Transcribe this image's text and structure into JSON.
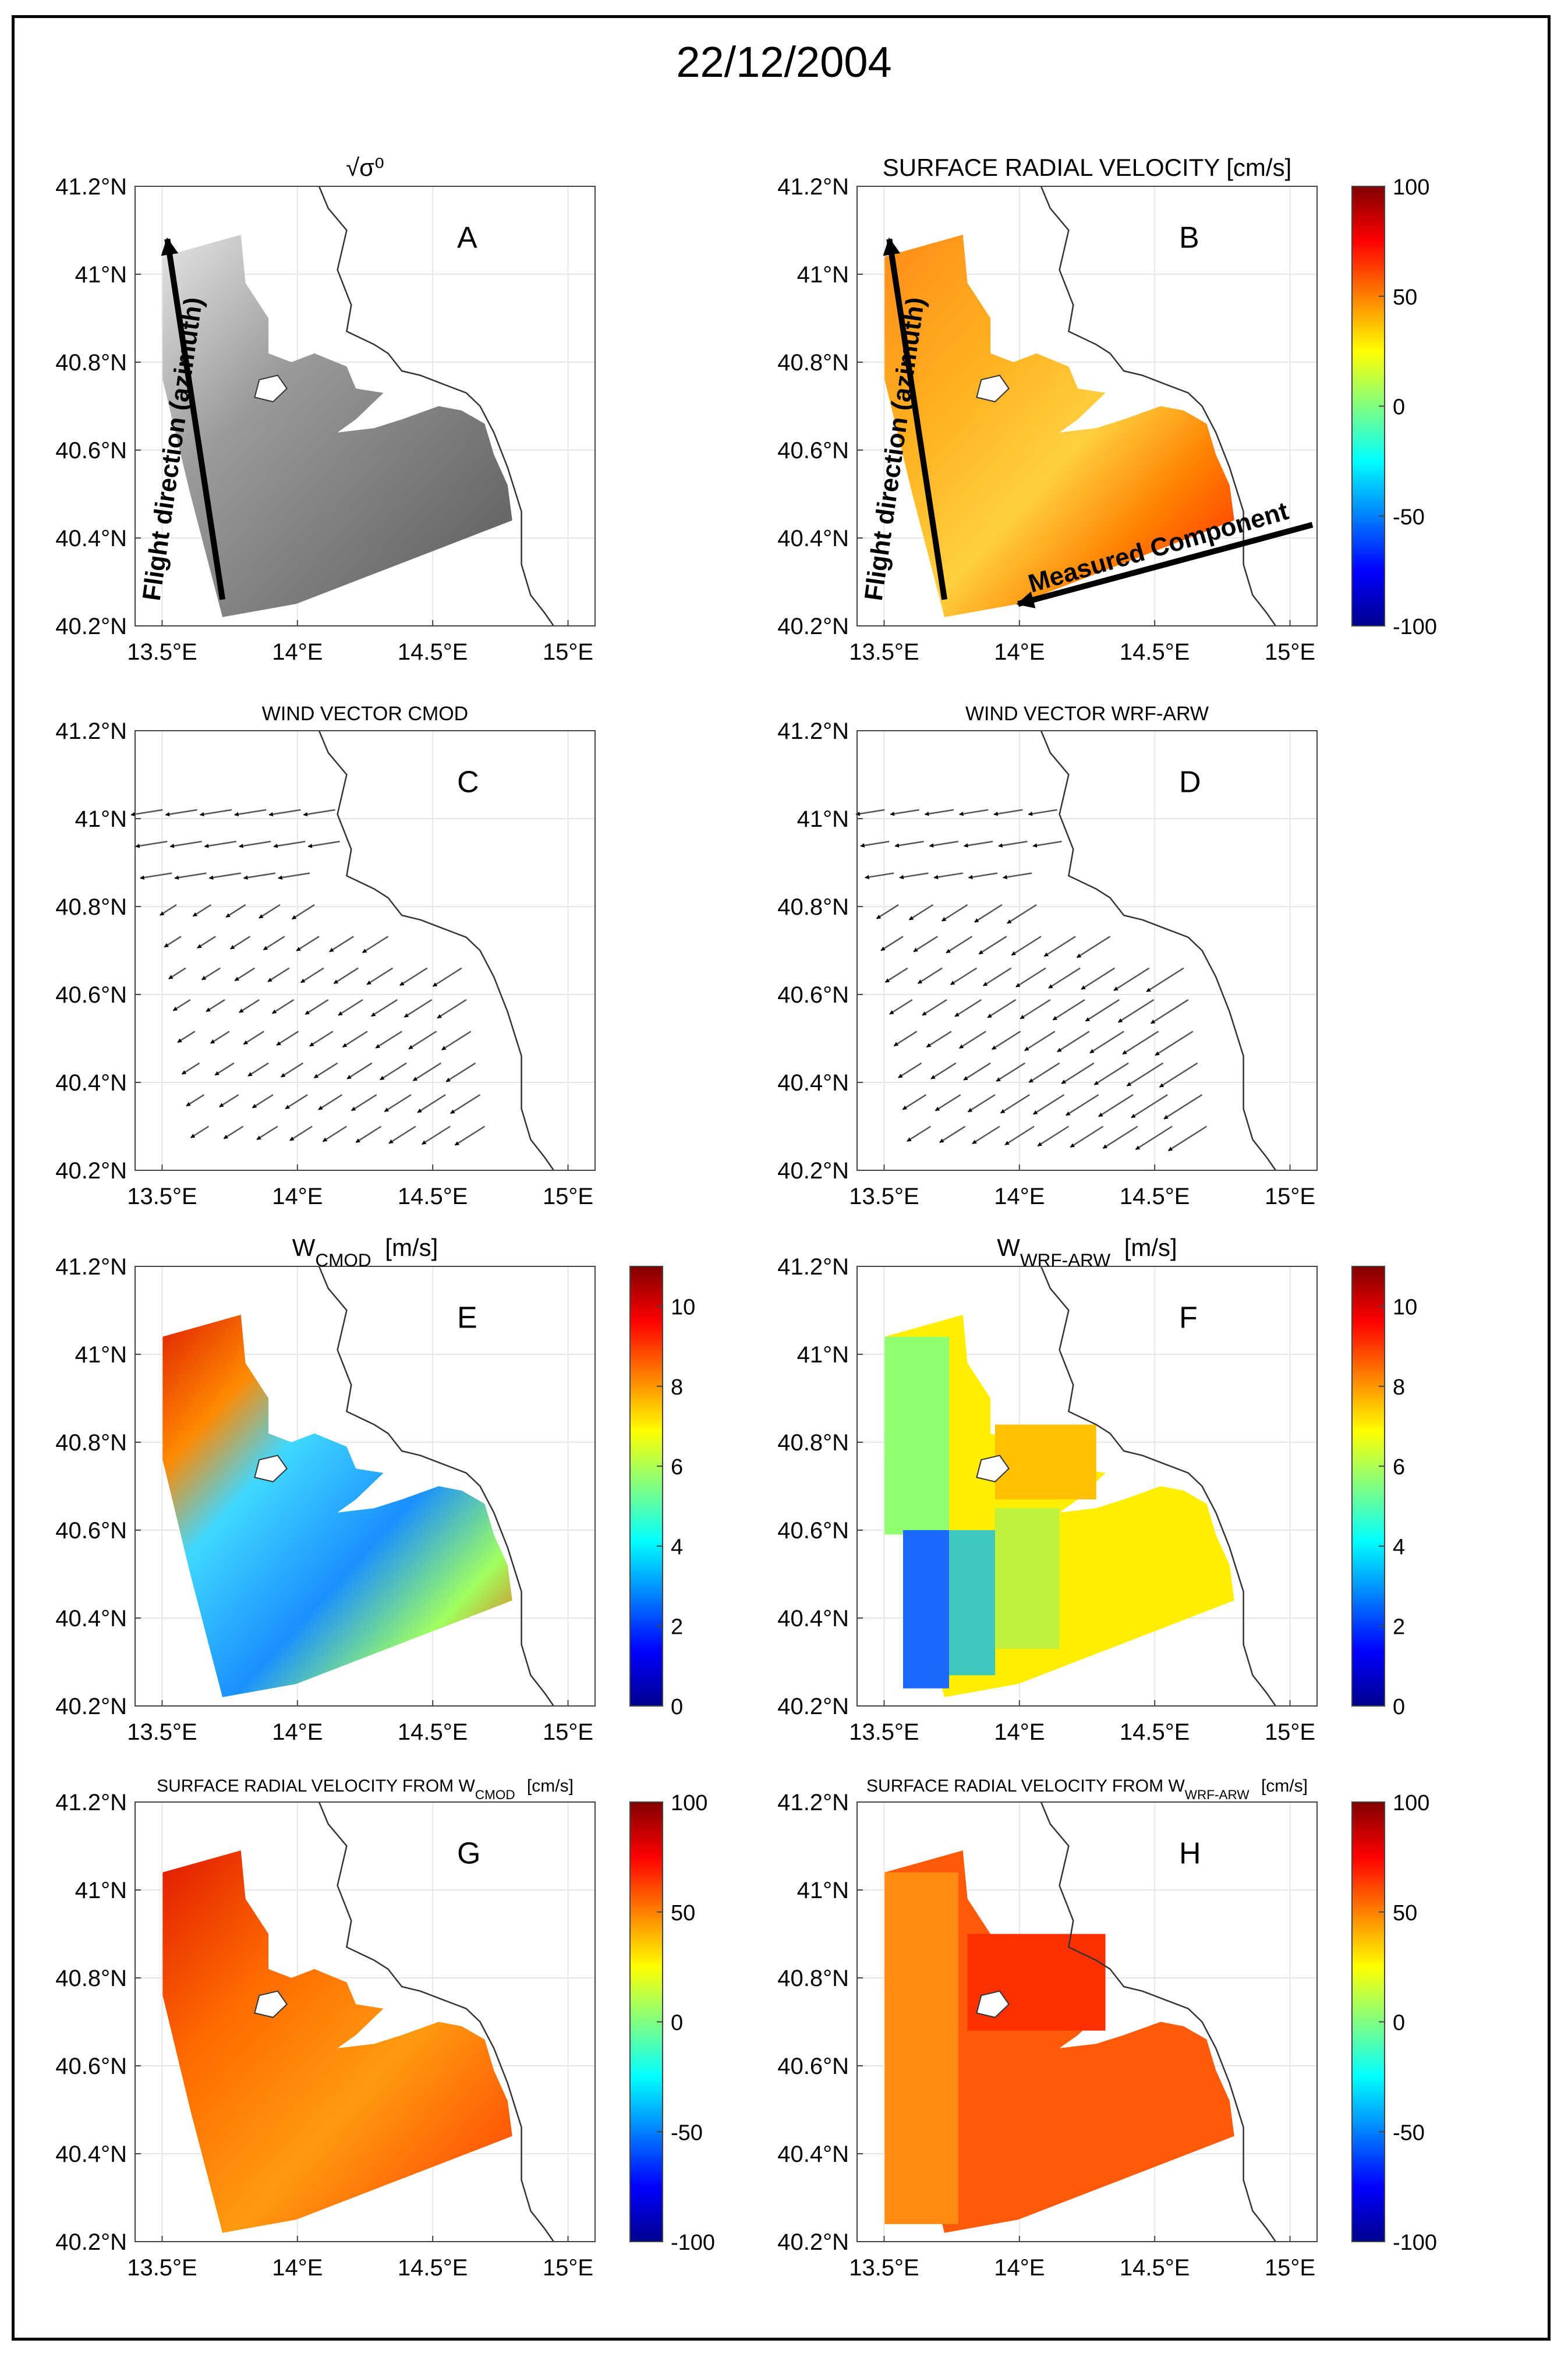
{
  "figure": {
    "date_title": "22/12/2004"
  },
  "colors": {
    "coast": "#333333",
    "grid": "#e6e6e6",
    "arrow": "#555555",
    "jet": [
      "#00008f",
      "#0000ff",
      "#0080ff",
      "#00ffff",
      "#80ff80",
      "#ffff00",
      "#ff8000",
      "#ff0000",
      "#800000"
    ]
  },
  "chart_data": [
    {
      "id": "A",
      "type": "heatmap",
      "title": "√σ⁰",
      "panel_letter": "A",
      "xlabel": "",
      "ylabel": "",
      "xlim": [
        13.4,
        15.1
      ],
      "ylim": [
        40.2,
        41.2
      ],
      "x_ticks": [
        "13.5°E",
        "14°E",
        "14.5°E",
        "15°E"
      ],
      "x_tick_values": [
        13.5,
        14.0,
        14.5,
        15.0
      ],
      "y_ticks": [
        "40.2°N",
        "40.4°N",
        "40.6°N",
        "40.8°N",
        "41°N",
        "41.2°N"
      ],
      "y_tick_values": [
        40.2,
        40.4,
        40.6,
        40.8,
        41.0,
        41.2
      ],
      "fill": "grayscale",
      "annotations": [
        "Flight direction (azimuth)"
      ],
      "grid": true
    },
    {
      "id": "B",
      "type": "heatmap",
      "title": "SURFACE RADIAL VELOCITY [cm/s]",
      "panel_letter": "B",
      "xlim": [
        13.4,
        15.1
      ],
      "ylim": [
        40.2,
        41.2
      ],
      "x_ticks": [
        "13.5°E",
        "14°E",
        "14.5°E",
        "15°E"
      ],
      "x_tick_values": [
        13.5,
        14.0,
        14.5,
        15.0
      ],
      "y_ticks": [
        "40.2°N",
        "40.4°N",
        "40.6°N",
        "40.8°N",
        "41°N",
        "41.2°N"
      ],
      "y_tick_values": [
        40.2,
        40.4,
        40.6,
        40.8,
        41.0,
        41.2
      ],
      "colorbar": {
        "range": [
          -100,
          100
        ],
        "ticks": [
          "100",
          "50",
          "0",
          "-50",
          "-100"
        ]
      },
      "annotations": [
        "Flight direction (azimuth)",
        "Measured Component"
      ],
      "grid": true
    },
    {
      "id": "C",
      "type": "scatter",
      "title": "WIND VECTOR CMOD",
      "panel_letter": "C",
      "xlim": [
        13.4,
        15.1
      ],
      "ylim": [
        40.2,
        41.2
      ],
      "x_ticks": [
        "13.5°E",
        "14°E",
        "14.5°E",
        "15°E"
      ],
      "x_tick_values": [
        13.5,
        14.0,
        14.5,
        15.0
      ],
      "y_ticks": [
        "40.2°N",
        "40.4°N",
        "40.6°N",
        "40.8°N",
        "41°N",
        "41.2°N"
      ],
      "y_tick_values": [
        40.2,
        40.4,
        40.6,
        40.8,
        41.0,
        41.2
      ],
      "glyph": "wind vectors",
      "grid": true
    },
    {
      "id": "D",
      "type": "scatter",
      "title": "WIND VECTOR WRF-ARW",
      "panel_letter": "D",
      "xlim": [
        13.4,
        15.1
      ],
      "ylim": [
        40.2,
        41.2
      ],
      "x_ticks": [
        "13.5°E",
        "14°E",
        "14.5°E",
        "15°E"
      ],
      "x_tick_values": [
        13.5,
        14.0,
        14.5,
        15.0
      ],
      "y_ticks": [
        "40.2°N",
        "40.4°N",
        "40.6°N",
        "40.8°N",
        "41°N",
        "41.2°N"
      ],
      "y_tick_values": [
        40.2,
        40.4,
        40.6,
        40.8,
        41.0,
        41.2
      ],
      "glyph": "wind vectors",
      "grid": true
    },
    {
      "id": "E",
      "type": "heatmap",
      "title": "W",
      "title_sub": "CMOD",
      "title_suffix": "[m/s]",
      "panel_letter": "E",
      "xlim": [
        13.4,
        15.1
      ],
      "ylim": [
        40.2,
        41.2
      ],
      "x_ticks": [
        "13.5°E",
        "14°E",
        "14.5°E",
        "15°E"
      ],
      "x_tick_values": [
        13.5,
        14.0,
        14.5,
        15.0
      ],
      "y_ticks": [
        "40.2°N",
        "40.4°N",
        "40.6°N",
        "40.8°N",
        "41°N",
        "41.2°N"
      ],
      "y_tick_values": [
        40.2,
        40.4,
        40.6,
        40.8,
        41.0,
        41.2
      ],
      "colorbar": {
        "range": [
          0,
          11
        ],
        "ticks": [
          "10",
          "8",
          "6",
          "4",
          "2",
          "0"
        ]
      },
      "grid": true
    },
    {
      "id": "F",
      "type": "heatmap",
      "title": "W",
      "title_sub": "WRF-ARW",
      "title_suffix": "[m/s]",
      "panel_letter": "F",
      "xlim": [
        13.4,
        15.1
      ],
      "ylim": [
        40.2,
        41.2
      ],
      "x_ticks": [
        "13.5°E",
        "14°E",
        "14.5°E",
        "15°E"
      ],
      "x_tick_values": [
        13.5,
        14.0,
        14.5,
        15.0
      ],
      "y_ticks": [
        "40.2°N",
        "40.4°N",
        "40.6°N",
        "40.8°N",
        "41°N",
        "41.2°N"
      ],
      "y_tick_values": [
        40.2,
        40.4,
        40.6,
        40.8,
        41.0,
        41.2
      ],
      "colorbar": {
        "range": [
          0,
          11
        ],
        "ticks": [
          "10",
          "8",
          "6",
          "4",
          "2",
          "0"
        ]
      },
      "grid": true
    },
    {
      "id": "G",
      "type": "heatmap",
      "title": "SURFACE RADIAL VELOCITY FROM W",
      "title_sub": "CMOD",
      "title_suffix": "[cm/s]",
      "panel_letter": "G",
      "xlim": [
        13.4,
        15.1
      ],
      "ylim": [
        40.2,
        41.2
      ],
      "x_ticks": [
        "13.5°E",
        "14°E",
        "14.5°E",
        "15°E"
      ],
      "x_tick_values": [
        13.5,
        14.0,
        14.5,
        15.0
      ],
      "y_ticks": [
        "40.2°N",
        "40.4°N",
        "40.6°N",
        "40.8°N",
        "41°N",
        "41.2°N"
      ],
      "y_tick_values": [
        40.2,
        40.4,
        40.6,
        40.8,
        41.0,
        41.2
      ],
      "colorbar": {
        "range": [
          -100,
          100
        ],
        "ticks": [
          "100",
          "50",
          "0",
          "-50",
          "-100"
        ]
      },
      "grid": true
    },
    {
      "id": "H",
      "type": "heatmap",
      "title": "SURFACE RADIAL VELOCITY FROM W",
      "title_sub": "WRF-ARW",
      "title_suffix": "[cm/s]",
      "panel_letter": "H",
      "xlim": [
        13.4,
        15.1
      ],
      "ylim": [
        40.2,
        41.2
      ],
      "x_ticks": [
        "13.5°E",
        "14°E",
        "14.5°E",
        "15°E"
      ],
      "x_tick_values": [
        13.5,
        14.0,
        14.5,
        15.0
      ],
      "y_ticks": [
        "40.2°N",
        "40.4°N",
        "40.6°N",
        "40.8°N",
        "41°N",
        "41.2°N"
      ],
      "y_tick_values": [
        40.2,
        40.4,
        40.6,
        40.8,
        41.0,
        41.2
      ],
      "colorbar": {
        "range": [
          -100,
          100
        ],
        "ticks": [
          "100",
          "50",
          "0",
          "-50",
          "-100"
        ]
      },
      "grid": true
    }
  ]
}
